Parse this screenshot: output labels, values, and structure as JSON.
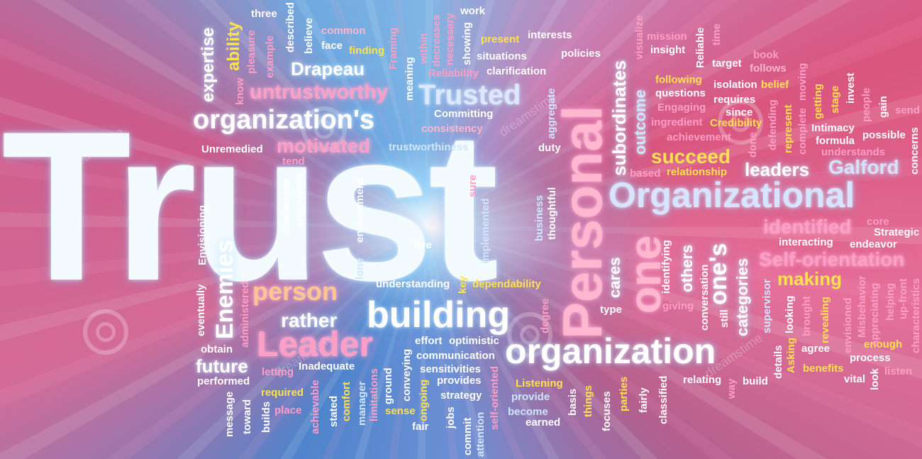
{
  "image": {
    "watermark_text": "dreamstime",
    "words": {
      "trust": "Trust",
      "personal": "Personal",
      "organizational": "Organizational",
      "organization": "organization",
      "building": "building",
      "leader": "Leader",
      "organizations_s": "organization's",
      "trusted": "Trusted",
      "one": "one",
      "ones": "one's",
      "enemies": "Enemies",
      "person": "person",
      "untrustworthy": "untrustworthy",
      "motivated": "motivated",
      "drapeau": "Drapeau",
      "succeed": "succeed",
      "leaders": "leaders",
      "galford": "Galford",
      "identified": "identified",
      "self_orientation": "Self-orientation",
      "making": "making",
      "rather": "rather",
      "future": "future",
      "subordinates": "subordinates",
      "outcome": "outcome",
      "expertise": "expertise",
      "ability": "ability",
      "three": "three",
      "described": "described",
      "believe": "believe",
      "common": "common",
      "face": "face",
      "finding": "finding",
      "framing": "Framing",
      "meaning": "meaning",
      "within": "within",
      "decreases": "decreases",
      "necessary": "necessary",
      "showing": "showing",
      "work": "work",
      "present": "present",
      "interests": "interests",
      "situations": "situations",
      "policies": "policies",
      "reliability": "Reliability",
      "clarification": "clarification",
      "pleasure": "pleasure",
      "example": "example",
      "know": "know",
      "committing": "Committing",
      "consistency": "consistency",
      "trustworthiness": "trustworthiness",
      "unremedied": "Unremedied",
      "tend": "tend",
      "duty": "duty",
      "aggregate": "aggregate",
      "visualize": "visualize",
      "mission": "mission",
      "insight": "insight",
      "reliable": "Reliable",
      "time": "time",
      "book": "book",
      "follows": "follows",
      "target": "target",
      "following": "following",
      "questions": "questions",
      "isolation": "isolation",
      "belief": "belief",
      "requires": "requires",
      "engaging": "Engaging",
      "since": "since",
      "ingredient": "ingredient",
      "credibility": "Credibility",
      "achievement": "achievement",
      "relationship": "relationship",
      "based": "based",
      "done": "done",
      "defending": "defending",
      "represent": "represent",
      "complete": "complete",
      "moving": "moving",
      "getting": "getting",
      "stage": "stage",
      "invest": "invest",
      "people": "people",
      "gain": "gain",
      "send": "send",
      "intimacy": "Intimacy",
      "formula": "formula",
      "possible": "possible",
      "understands": "understands",
      "concerns": "concerns",
      "core": "core",
      "strategic": "Strategic",
      "interacting": "interacting",
      "endeavor": "endeavor",
      "envisioning": "Envisioning",
      "challenges": "challenges",
      "employees": "employees",
      "environment": "environment",
      "lone": "lone",
      "five": "five",
      "sure": "sure",
      "implemented": "implemented",
      "business": "business",
      "thoughtful": "thoughtful",
      "understanding": "understanding",
      "key": "key",
      "dependability": "dependability",
      "degree": "degree",
      "cares": "cares",
      "type": "type",
      "identifying": "identifying",
      "giving": "giving",
      "others": "others",
      "conversation": "conversation",
      "still": "still",
      "categories": "categories",
      "supervisor": "supervisor",
      "looking": "looking",
      "brought": "brought",
      "revealing": "revealing",
      "envisioned": "envisioned",
      "misbehavior": "Misbehavior",
      "appreciating": "appreciating",
      "helping": "helping",
      "up_front": "up-front",
      "characteristics": "characteristics",
      "eventually": "eventually",
      "administered": "administered",
      "obtain": "obtain",
      "performed": "performed",
      "letting": "letting",
      "inadequate": "Inadequate",
      "required": "required",
      "place": "place",
      "message": "message",
      "toward": "toward",
      "builds": "builds",
      "achievable": "achievable",
      "stated": "stated",
      "comfort": "comfort",
      "manager": "manager",
      "limitations": "limitations",
      "ground": "ground",
      "sense": "sense",
      "conveying": "conveying",
      "ongoing": "ongoing",
      "fair": "fair",
      "effort": "effort",
      "optimistic": "optimistic",
      "communication": "communication",
      "sensitivities": "sensitivities",
      "provides": "provides",
      "strategy": "strategy",
      "jobs": "jobs",
      "commit": "commit",
      "attention": "attention",
      "self_oriented": "self-oriented",
      "listening": "Listening",
      "provide": "provide",
      "become": "become",
      "earned": "earned",
      "basis": "basis",
      "things": "things",
      "focuses": "focuses",
      "parties": "parties",
      "fairly": "fairly",
      "classified": "classified",
      "relating": "relating",
      "way": "way",
      "build": "build",
      "details": "details",
      "asking": "Asking",
      "agree": "agree",
      "benefits": "benefits",
      "enough": "enough",
      "process": "process",
      "vital": "vital",
      "look": "look",
      "listen": "listen"
    }
  }
}
